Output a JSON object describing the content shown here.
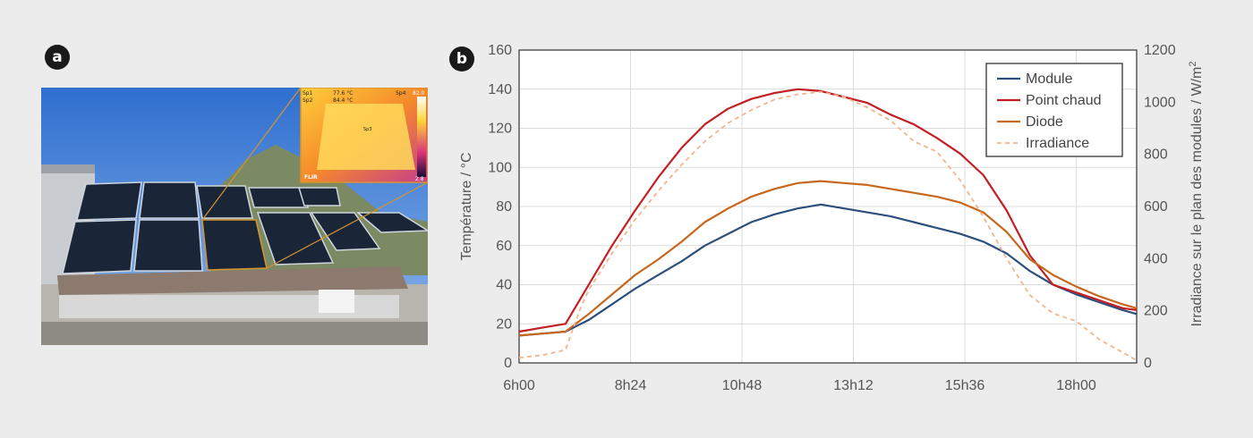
{
  "panels": {
    "a_label": "a",
    "b_label": "b"
  },
  "photo": {
    "description_icon": "solar-panel-photo",
    "thermal_overlay": {
      "sp1": "Sp1",
      "sp2": "Sp2",
      "sp3": "Sp3",
      "sp4": "Sp4",
      "val1": "77.6 °C",
      "val2": "84.4 °C",
      "scale_max": "82.0",
      "scale_min": "2.8",
      "brand": "FLIR"
    }
  },
  "colors": {
    "module": "#2d4f7c",
    "point_chaud": "#c41e24",
    "diode": "#c8661c",
    "irradiance": "#f2b58c"
  },
  "chart_data": {
    "type": "line",
    "xlabel": "",
    "ylabel": "Température / °C",
    "y2label": "Irradiance sur le plan des modules / W/m²",
    "x_ticks": [
      "6h00",
      "8h24",
      "10h48",
      "13h12",
      "15h36",
      "18h00"
    ],
    "x_range_hours": [
      6,
      19.3
    ],
    "ylim": [
      0,
      160
    ],
    "y_ticks": [
      0,
      20,
      40,
      60,
      80,
      100,
      120,
      140,
      160
    ],
    "y2lim": [
      0,
      1200
    ],
    "y2_ticks": [
      0,
      200,
      400,
      600,
      800,
      1000,
      1200
    ],
    "grid": true,
    "legend_position": "top-right",
    "series": [
      {
        "name": "Module",
        "axis": "left",
        "style": "solid",
        "x": [
          6.0,
          6.5,
          7.0,
          7.5,
          8.0,
          8.5,
          9.0,
          9.5,
          10.0,
          10.5,
          11.0,
          11.5,
          12.0,
          12.5,
          13.0,
          13.5,
          14.0,
          14.5,
          15.0,
          15.5,
          16.0,
          16.5,
          17.0,
          17.5,
          18.0,
          18.5,
          19.0,
          19.3
        ],
        "y": [
          14,
          15,
          16,
          22,
          30,
          38,
          45,
          52,
          60,
          66,
          72,
          76,
          79,
          81,
          79,
          77,
          75,
          72,
          69,
          66,
          62,
          56,
          47,
          40,
          35,
          31,
          27,
          25
        ]
      },
      {
        "name": "Point chaud",
        "axis": "left",
        "style": "solid",
        "x": [
          6.0,
          6.5,
          7.0,
          7.5,
          8.0,
          8.5,
          9.0,
          9.5,
          10.0,
          10.5,
          11.0,
          11.5,
          12.0,
          12.5,
          13.0,
          13.5,
          14.0,
          14.5,
          15.0,
          15.5,
          16.0,
          16.5,
          17.0,
          17.5,
          18.0,
          18.5,
          19.0,
          19.3
        ],
        "y": [
          16,
          18,
          20,
          40,
          60,
          78,
          95,
          110,
          122,
          130,
          135,
          138,
          140,
          139,
          136,
          133,
          127,
          122,
          115,
          107,
          96,
          78,
          55,
          40,
          36,
          32,
          28,
          27
        ]
      },
      {
        "name": "Diode",
        "axis": "left",
        "style": "solid",
        "x": [
          6.0,
          6.5,
          7.0,
          7.5,
          8.0,
          8.5,
          9.0,
          9.5,
          10.0,
          10.5,
          11.0,
          11.5,
          12.0,
          12.5,
          13.0,
          13.5,
          14.0,
          14.5,
          15.0,
          15.5,
          16.0,
          16.5,
          17.0,
          17.5,
          18.0,
          18.5,
          19.0,
          19.3
        ],
        "y": [
          14,
          15,
          16,
          25,
          35,
          45,
          53,
          62,
          72,
          79,
          85,
          89,
          92,
          93,
          92,
          91,
          89,
          87,
          85,
          82,
          77,
          67,
          53,
          45,
          39,
          34,
          30,
          28
        ]
      },
      {
        "name": "Irradiance",
        "axis": "right",
        "style": "dashed",
        "x": [
          6.0,
          6.5,
          7.0,
          7.3,
          7.5,
          8.0,
          8.5,
          9.0,
          9.5,
          10.0,
          10.5,
          11.0,
          11.5,
          12.0,
          12.5,
          13.0,
          13.5,
          14.0,
          14.5,
          15.0,
          15.5,
          16.0,
          16.5,
          17.0,
          17.5,
          18.0,
          18.5,
          19.0,
          19.3
        ],
        "y": [
          20,
          30,
          50,
          200,
          280,
          420,
          550,
          660,
          760,
          850,
          920,
          970,
          1010,
          1030,
          1040,
          1020,
          980,
          930,
          850,
          810,
          700,
          560,
          400,
          260,
          190,
          160,
          90,
          40,
          10
        ]
      }
    ]
  }
}
